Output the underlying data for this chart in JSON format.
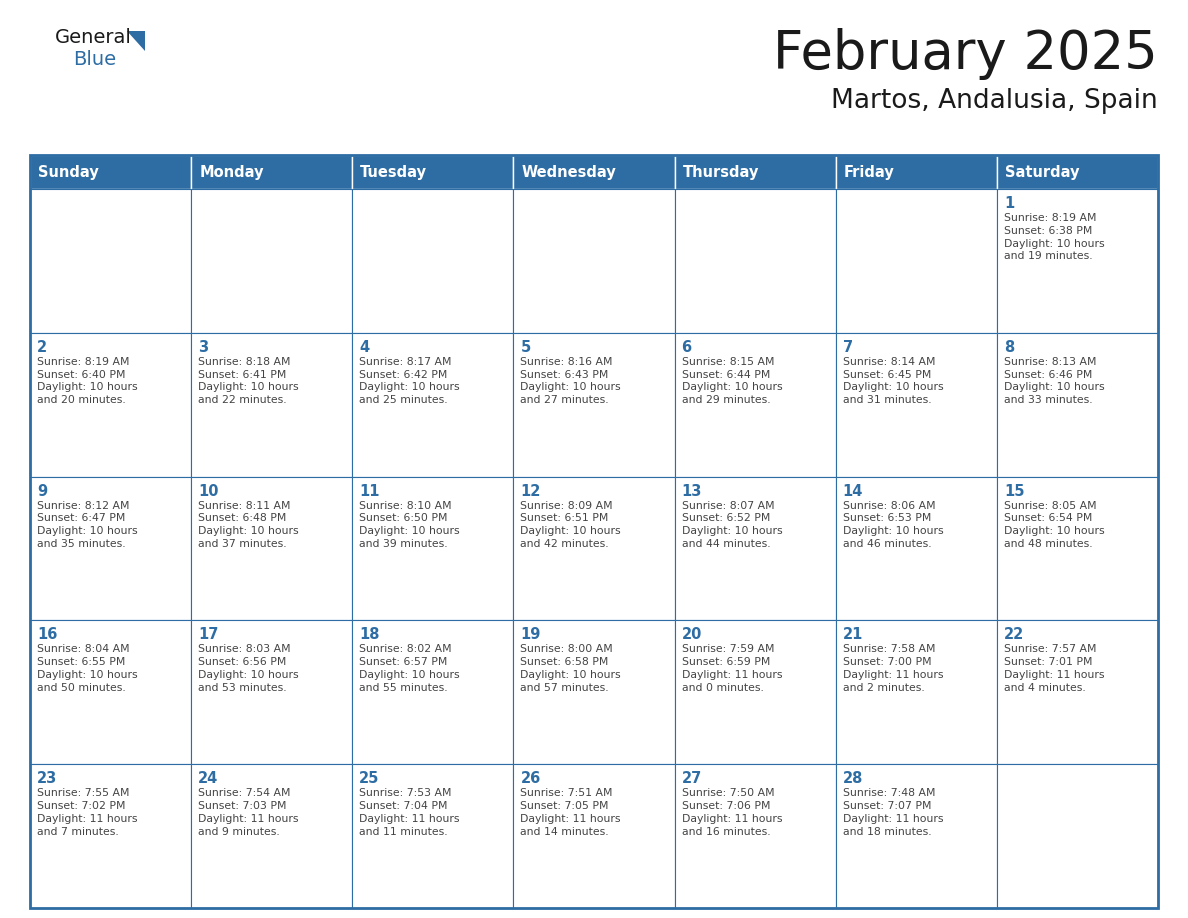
{
  "title": "February 2025",
  "subtitle": "Martos, Andalusia, Spain",
  "header_bg_color": "#2e6da4",
  "header_text_color": "#ffffff",
  "border_color": "#2e6da4",
  "day_number_color": "#2e6da4",
  "cell_text_color": "#444444",
  "title_color": "#1a1a1a",
  "subtitle_color": "#1a1a1a",
  "logo_text_color": "#1a1a1a",
  "logo_blue_color": "#2e6da4",
  "weekdays": [
    "Sunday",
    "Monday",
    "Tuesday",
    "Wednesday",
    "Thursday",
    "Friday",
    "Saturday"
  ],
  "days": [
    {
      "day": 1,
      "col": 6,
      "row": 0,
      "sunrise": "8:19 AM",
      "sunset": "6:38 PM",
      "daylight": "10 hours\nand 19 minutes."
    },
    {
      "day": 2,
      "col": 0,
      "row": 1,
      "sunrise": "8:19 AM",
      "sunset": "6:40 PM",
      "daylight": "10 hours\nand 20 minutes."
    },
    {
      "day": 3,
      "col": 1,
      "row": 1,
      "sunrise": "8:18 AM",
      "sunset": "6:41 PM",
      "daylight": "10 hours\nand 22 minutes."
    },
    {
      "day": 4,
      "col": 2,
      "row": 1,
      "sunrise": "8:17 AM",
      "sunset": "6:42 PM",
      "daylight": "10 hours\nand 25 minutes."
    },
    {
      "day": 5,
      "col": 3,
      "row": 1,
      "sunrise": "8:16 AM",
      "sunset": "6:43 PM",
      "daylight": "10 hours\nand 27 minutes."
    },
    {
      "day": 6,
      "col": 4,
      "row": 1,
      "sunrise": "8:15 AM",
      "sunset": "6:44 PM",
      "daylight": "10 hours\nand 29 minutes."
    },
    {
      "day": 7,
      "col": 5,
      "row": 1,
      "sunrise": "8:14 AM",
      "sunset": "6:45 PM",
      "daylight": "10 hours\nand 31 minutes."
    },
    {
      "day": 8,
      "col": 6,
      "row": 1,
      "sunrise": "8:13 AM",
      "sunset": "6:46 PM",
      "daylight": "10 hours\nand 33 minutes."
    },
    {
      "day": 9,
      "col": 0,
      "row": 2,
      "sunrise": "8:12 AM",
      "sunset": "6:47 PM",
      "daylight": "10 hours\nand 35 minutes."
    },
    {
      "day": 10,
      "col": 1,
      "row": 2,
      "sunrise": "8:11 AM",
      "sunset": "6:48 PM",
      "daylight": "10 hours\nand 37 minutes."
    },
    {
      "day": 11,
      "col": 2,
      "row": 2,
      "sunrise": "8:10 AM",
      "sunset": "6:50 PM",
      "daylight": "10 hours\nand 39 minutes."
    },
    {
      "day": 12,
      "col": 3,
      "row": 2,
      "sunrise": "8:09 AM",
      "sunset": "6:51 PM",
      "daylight": "10 hours\nand 42 minutes."
    },
    {
      "day": 13,
      "col": 4,
      "row": 2,
      "sunrise": "8:07 AM",
      "sunset": "6:52 PM",
      "daylight": "10 hours\nand 44 minutes."
    },
    {
      "day": 14,
      "col": 5,
      "row": 2,
      "sunrise": "8:06 AM",
      "sunset": "6:53 PM",
      "daylight": "10 hours\nand 46 minutes."
    },
    {
      "day": 15,
      "col": 6,
      "row": 2,
      "sunrise": "8:05 AM",
      "sunset": "6:54 PM",
      "daylight": "10 hours\nand 48 minutes."
    },
    {
      "day": 16,
      "col": 0,
      "row": 3,
      "sunrise": "8:04 AM",
      "sunset": "6:55 PM",
      "daylight": "10 hours\nand 50 minutes."
    },
    {
      "day": 17,
      "col": 1,
      "row": 3,
      "sunrise": "8:03 AM",
      "sunset": "6:56 PM",
      "daylight": "10 hours\nand 53 minutes."
    },
    {
      "day": 18,
      "col": 2,
      "row": 3,
      "sunrise": "8:02 AM",
      "sunset": "6:57 PM",
      "daylight": "10 hours\nand 55 minutes."
    },
    {
      "day": 19,
      "col": 3,
      "row": 3,
      "sunrise": "8:00 AM",
      "sunset": "6:58 PM",
      "daylight": "10 hours\nand 57 minutes."
    },
    {
      "day": 20,
      "col": 4,
      "row": 3,
      "sunrise": "7:59 AM",
      "sunset": "6:59 PM",
      "daylight": "11 hours\nand 0 minutes."
    },
    {
      "day": 21,
      "col": 5,
      "row": 3,
      "sunrise": "7:58 AM",
      "sunset": "7:00 PM",
      "daylight": "11 hours\nand 2 minutes."
    },
    {
      "day": 22,
      "col": 6,
      "row": 3,
      "sunrise": "7:57 AM",
      "sunset": "7:01 PM",
      "daylight": "11 hours\nand 4 minutes."
    },
    {
      "day": 23,
      "col": 0,
      "row": 4,
      "sunrise": "7:55 AM",
      "sunset": "7:02 PM",
      "daylight": "11 hours\nand 7 minutes."
    },
    {
      "day": 24,
      "col": 1,
      "row": 4,
      "sunrise": "7:54 AM",
      "sunset": "7:03 PM",
      "daylight": "11 hours\nand 9 minutes."
    },
    {
      "day": 25,
      "col": 2,
      "row": 4,
      "sunrise": "7:53 AM",
      "sunset": "7:04 PM",
      "daylight": "11 hours\nand 11 minutes."
    },
    {
      "day": 26,
      "col": 3,
      "row": 4,
      "sunrise": "7:51 AM",
      "sunset": "7:05 PM",
      "daylight": "11 hours\nand 14 minutes."
    },
    {
      "day": 27,
      "col": 4,
      "row": 4,
      "sunrise": "7:50 AM",
      "sunset": "7:06 PM",
      "daylight": "11 hours\nand 16 minutes."
    },
    {
      "day": 28,
      "col": 5,
      "row": 4,
      "sunrise": "7:48 AM",
      "sunset": "7:07 PM",
      "daylight": "11 hours\nand 18 minutes."
    }
  ],
  "fig_width": 11.88,
  "fig_height": 9.18,
  "dpi": 100
}
